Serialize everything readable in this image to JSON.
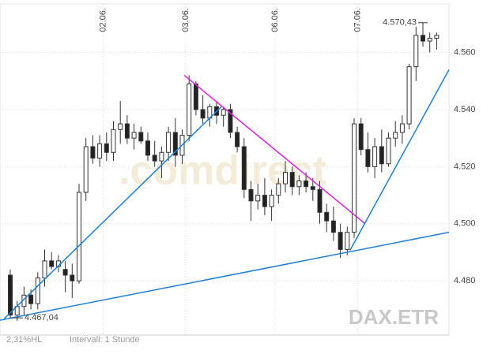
{
  "chart_data": {
    "type": "candlestick",
    "categories": [
      null,
      null,
      null,
      null,
      null,
      null,
      null,
      null,
      null,
      null,
      null,
      null,
      null,
      null,
      "02.06.",
      null,
      null,
      null,
      null,
      null,
      null,
      null,
      null,
      null,
      null,
      null,
      "03.06.",
      null,
      null,
      null,
      null,
      null,
      null,
      null,
      null,
      null,
      null,
      null,
      null,
      "06.06.",
      null,
      null,
      null,
      null,
      null,
      null,
      null,
      null,
      null,
      null,
      null,
      "07.06.",
      null,
      null,
      null,
      null,
      null,
      null,
      null,
      null,
      null,
      null,
      null
    ],
    "open": [
      4482,
      4468,
      4471,
      4475,
      4472,
      4481,
      4487,
      4485,
      4484,
      4482,
      4480,
      4511,
      4527,
      4523,
      4528,
      4525,
      4533,
      4535,
      4530,
      4532,
      4529,
      4524,
      4522,
      4525,
      4532,
      4524,
      4531,
      4549,
      4540,
      4537,
      4541,
      4538,
      4540,
      4532,
      4527,
      4512,
      4508,
      4510,
      4506,
      4510,
      4514,
      4518,
      4513,
      4515,
      4513,
      4512,
      4504,
      4501,
      4497,
      4491,
      4497,
      4535,
      4526,
      4520,
      4527,
      4521,
      4530,
      4532,
      4535,
      4555,
      4566,
      4564,
      4565
    ],
    "high": [
      4484,
      4473,
      4478,
      4477,
      4483,
      4491,
      4490,
      4489,
      4487,
      4486,
      4514,
      4530,
      4531,
      4531,
      4532,
      4536,
      4543,
      4538,
      4535,
      4534,
      4532,
      4529,
      4527,
      4534,
      4537,
      4533,
      4552,
      4550,
      4545,
      4542,
      4543,
      4541,
      4542,
      4534,
      4530,
      4515,
      4514,
      4516,
      4512,
      4516,
      4522,
      4520,
      4517,
      4518,
      4516,
      4515,
      4507,
      4506,
      4500,
      4499,
      4537,
      4537,
      4532,
      4530,
      4533,
      4532,
      4536,
      4538,
      4556,
      4569,
      4570.43,
      4567,
      4567
    ],
    "low": [
      4467.04,
      4466,
      4468,
      4470,
      4470,
      4478,
      4484,
      4483,
      4476,
      4474,
      4479,
      4508,
      4521,
      4520,
      4522,
      4522,
      4528,
      4528,
      4526,
      4528,
      4522,
      4520,
      4516,
      4522,
      4520,
      4521,
      4529,
      4538,
      4535,
      4534,
      4535,
      4534,
      4530,
      4525,
      4509,
      4501,
      4505,
      4503,
      4501,
      4507,
      4511,
      4510,
      4510,
      4511,
      4508,
      4500,
      4497,
      4494,
      4488,
      4489,
      4495,
      4524,
      4518,
      4516,
      4518,
      4520,
      4527,
      4528,
      4533,
      4550,
      4562,
      4560,
      4561
    ],
    "close": [
      4468,
      4471,
      4475,
      4472,
      4481,
      4487,
      4485,
      4487,
      4482,
      4480,
      4511,
      4527,
      4523,
      4528,
      4525,
      4533,
      4535,
      4530,
      4532,
      4529,
      4524,
      4522,
      4525,
      4532,
      4524,
      4531,
      4549,
      4540,
      4537,
      4541,
      4538,
      4540,
      4532,
      4527,
      4512,
      4508,
      4510,
      4506,
      4510,
      4514,
      4518,
      4513,
      4515,
      4513,
      4512,
      4504,
      4501,
      4497,
      4491,
      4497,
      4535,
      4526,
      4520,
      4527,
      4521,
      4530,
      4532,
      4535,
      4555,
      4566,
      4564,
      4565,
      4566
    ],
    "ylim": [
      4461,
      4577
    ],
    "yticks": [
      {
        "value": 4480,
        "label": "4.480"
      },
      {
        "value": 4500,
        "label": "4.500"
      },
      {
        "value": 4520,
        "label": "4.520"
      },
      {
        "value": 4540,
        "label": "4.540"
      },
      {
        "value": 4560,
        "label": "4.560"
      }
    ],
    "grid": true,
    "annotations": [
      {
        "label": "4.570,43",
        "value": 4570.43,
        "index": 60
      },
      {
        "label": "4.467,04",
        "value": 4467.04,
        "index": 0
      }
    ],
    "trendlines": [
      {
        "color": "#1e7fd8",
        "x": [
          -0.9,
          30.7
        ],
        "values": [
          4466.7,
          4541
        ]
      },
      {
        "color": "#e020e0",
        "x": [
          25.3,
          51.6
        ],
        "values": [
          4552,
          4500
        ]
      },
      {
        "color": "#1e7fd8",
        "x": [
          49.4,
          63.8
        ],
        "values": [
          4490.7,
          4554
        ]
      },
      {
        "color": "#1e7fd8",
        "x": [
          -1.5,
          63.8
        ],
        "values": [
          4466.2,
          4497
        ]
      }
    ],
    "watermark": ".comdirect",
    "symbol": "DAX.ETR",
    "footer": [
      "2,31%HL",
      "Intervall: 1 Stunde"
    ]
  }
}
